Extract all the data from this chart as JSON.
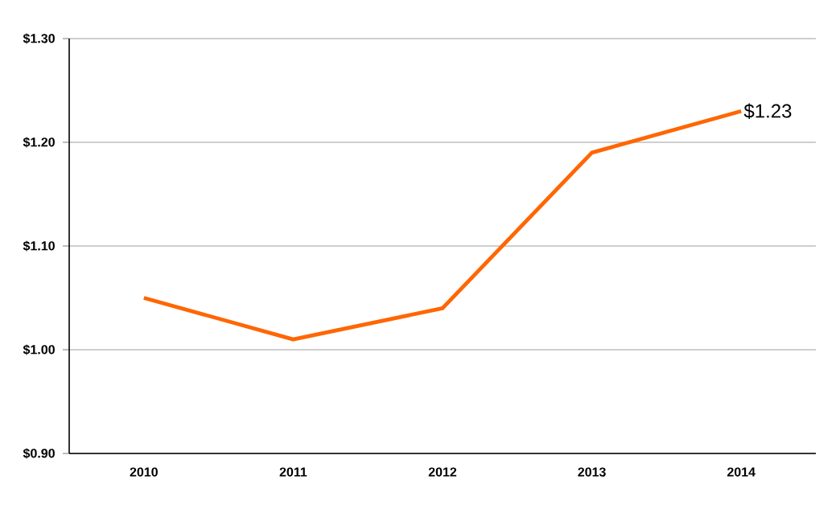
{
  "chart_data": {
    "type": "line",
    "categories": [
      "2010",
      "2011",
      "2012",
      "2013",
      "2014"
    ],
    "series": [
      {
        "color": "#ff6600",
        "values": [
          1.05,
          1.01,
          1.04,
          1.19,
          1.23
        ],
        "value_labels": [
          null,
          null,
          null,
          null,
          "$1.23"
        ]
      }
    ],
    "ylim": [
      0.9,
      1.3
    ],
    "yticks": [
      {
        "value": 0.9,
        "label": "$0.90"
      },
      {
        "value": 1.0,
        "label": "$1.00"
      },
      {
        "value": 1.1,
        "label": "$1.10"
      },
      {
        "value": 1.2,
        "label": "$1.20"
      },
      {
        "value": 1.3,
        "label": "$1.30"
      }
    ],
    "grid": "y",
    "marker": "none",
    "line_style": "solid"
  }
}
